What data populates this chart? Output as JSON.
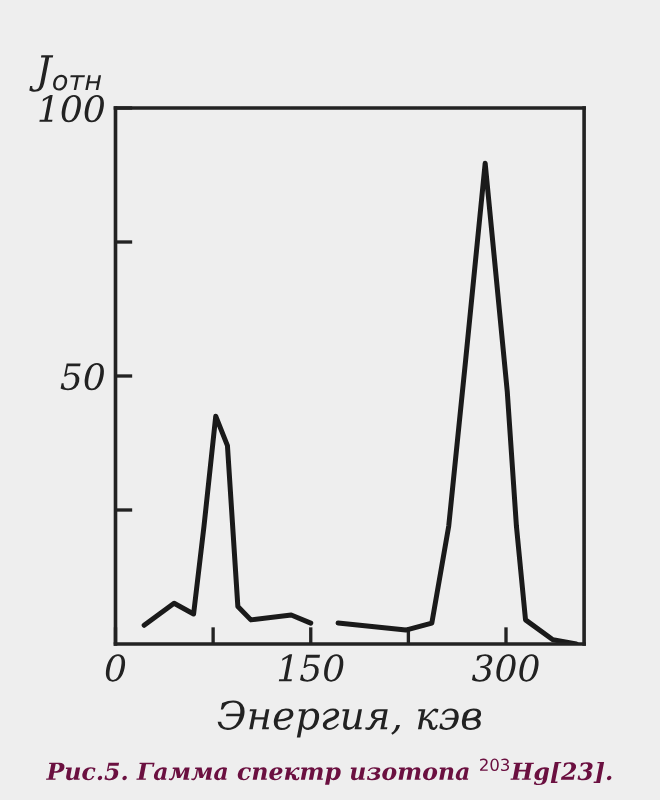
{
  "chart_data": {
    "type": "line",
    "xlabel": "Энергия, кэв",
    "ylabel": "J$_{отн}$",
    "annotations": [
      "Рис.5. Гамма спектр изотопа $^{203}$Hg[23]."
    ],
    "series": [
      {
        "color": "#1a1a1a",
        "x": [
          22,
          45,
          60,
          68,
          77,
          86,
          94,
          104,
          135,
          150,
          160,
          171,
          223,
          243,
          256,
          269,
          284,
          301,
          308,
          315,
          336,
          354
        ],
        "values": [
          3.5,
          7.6,
          5.6,
          22,
          42.5,
          37,
          7,
          4.5,
          5.4,
          3.9,
          null,
          3.9,
          2.6,
          3.9,
          22,
          53,
          89.7,
          47,
          22,
          4.5,
          0.8,
          0
        ]
      }
    ],
    "xlim": [
      0,
      360
    ],
    "ylim": [
      0,
      100
    ],
    "xticks": [
      0,
      {
        "value": 75,
        "label": null
      },
      150,
      {
        "value": 225,
        "label": null
      },
      300
    ],
    "yticks": [
      {
        "value": 25,
        "label": null
      },
      50,
      {
        "value": 75,
        "label": null
      },
      100
    ],
    "grid": false,
    "legend": false,
    "marker": "none",
    "line_style": "solid"
  }
}
